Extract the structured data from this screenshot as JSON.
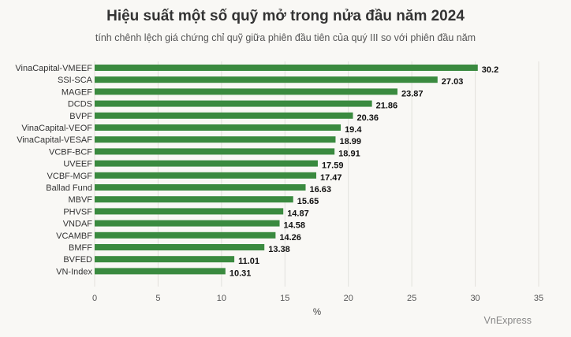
{
  "chart_data": {
    "type": "bar",
    "orientation": "horizontal",
    "title": "Hiệu suất một số quỹ mở trong nửa đầu năm 2024",
    "subtitle": "tính chênh lệch giá chứng chỉ quỹ giữa phiên đầu tiên của quý III so với phiên đầu năm",
    "xlabel": "%",
    "ylabel": "",
    "xlim": [
      0,
      35
    ],
    "xticks": [
      0,
      5,
      10,
      15,
      20,
      25,
      30,
      35
    ],
    "grid": true,
    "legend": "none",
    "categories": [
      "VinaCapital-VMEEF",
      "SSI-SCA",
      "MAGEF",
      "DCDS",
      "BVPF",
      "VinaCapital-VEOF",
      "VinaCapital-VESAF",
      "VCBF-BCF",
      "UVEEF",
      "VCBF-MGF",
      "Ballad Fund",
      "MBVF",
      "PHVSF",
      "VNDAF",
      "VCAMBF",
      "BMFF",
      "BVFED",
      "VN-Index"
    ],
    "values": [
      30.2,
      27.03,
      23.87,
      21.86,
      20.36,
      19.4,
      18.99,
      18.91,
      17.59,
      17.47,
      16.63,
      15.65,
      14.87,
      14.58,
      14.26,
      13.38,
      11.01,
      10.31
    ],
    "bar_color": "#3a8a3f",
    "source": "VnExpress"
  }
}
